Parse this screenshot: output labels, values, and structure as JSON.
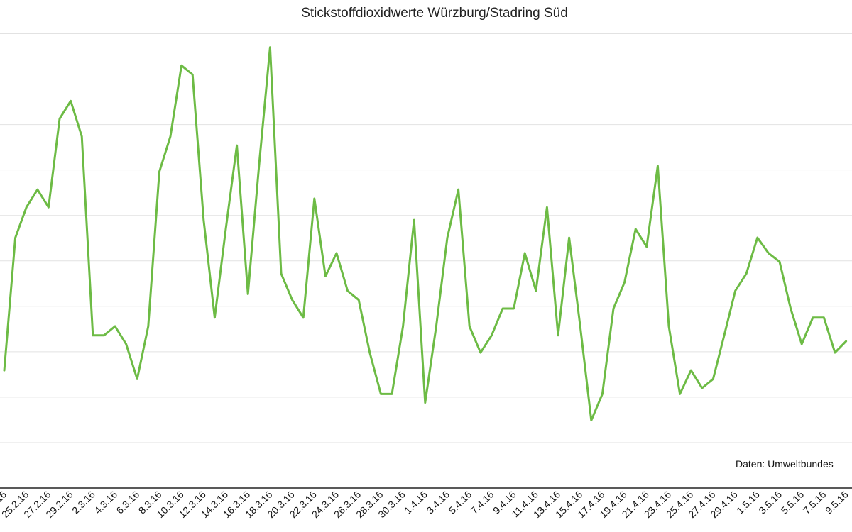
{
  "chart_data": {
    "type": "line",
    "title": "Stickstoffdioxidwerte Würzburg/Stadring Süd",
    "xlabel": "",
    "ylabel": "",
    "note": "Daten: Umweltbundes",
    "colors": {
      "series": "#6dbb45",
      "grid": "#e2e2e2",
      "axis": "#222222"
    },
    "grid": true,
    "ylim": [
      0,
      100
    ],
    "x": [
      "23.2.16",
      "24.2.16",
      "25.2.16",
      "26.2.16",
      "27.2.16",
      "28.2.16",
      "29.2.16",
      "1.3.16",
      "2.3.16",
      "3.3.16",
      "4.3.16",
      "5.3.16",
      "6.3.16",
      "7.3.16",
      "8.3.16",
      "9.3.16",
      "10.3.16",
      "11.3.16",
      "12.3.16",
      "13.3.16",
      "14.3.16",
      "15.3.16",
      "16.3.16",
      "17.3.16",
      "18.3.16",
      "19.3.16",
      "20.3.16",
      "21.3.16",
      "22.3.16",
      "23.3.16",
      "24.3.16",
      "25.3.16",
      "26.3.16",
      "27.3.16",
      "28.3.16",
      "29.3.16",
      "30.3.16",
      "31.3.16",
      "1.4.16",
      "2.4.16",
      "3.4.16",
      "4.4.16",
      "5.4.16",
      "6.4.16",
      "7.4.16",
      "8.4.16",
      "9.4.16",
      "10.4.16",
      "11.4.16",
      "12.4.16",
      "13.4.16",
      "14.4.16",
      "15.4.16",
      "16.4.16",
      "17.4.16",
      "18.4.16",
      "19.4.16",
      "20.4.16",
      "21.4.16",
      "22.4.16",
      "23.4.16",
      "24.4.16",
      "25.4.16",
      "26.4.16",
      "27.4.16",
      "28.4.16",
      "29.4.16",
      "30.4.16",
      "1.5.16",
      "2.5.16",
      "3.5.16",
      "4.5.16",
      "5.5.16",
      "6.5.16",
      "7.5.16",
      "8.5.16",
      "9.5.16"
    ],
    "tick_labels": [
      "23.2.16",
      "25.2.16",
      "27.2.16",
      "29.2.16",
      "2.3.16",
      "4.3.16",
      "6.3.16",
      "8.3.16",
      "10.3.16",
      "12.3.16",
      "14.3.16",
      "16.3.16",
      "18.3.16",
      "20.3.16",
      "22.3.16",
      "24.3.16",
      "26.3.16",
      "28.3.16",
      "30.3.16",
      "1.4.16",
      "3.4.16",
      "5.4.16",
      "7.4.16",
      "9.4.16",
      "11.4.16",
      "13.4.16",
      "15.4.16",
      "17.4.16",
      "19.4.16",
      "21.4.16",
      "23.4.16",
      "25.4.16",
      "27.4.16",
      "29.4.16",
      "1.5.16",
      "3.5.16",
      "5.5.16",
      "7.5.16",
      "9.5.16"
    ],
    "series": [
      {
        "values": [
          25.9,
          55.1,
          61.8,
          65.7,
          61.8,
          81.3,
          85.2,
          77.4,
          33.6,
          33.6,
          35.6,
          31.7,
          24.0,
          35.6,
          69.6,
          77.4,
          93.0,
          91.0,
          59.0,
          37.5,
          57.0,
          75.4,
          42.7,
          70.9,
          97.0,
          47.2,
          41.4,
          37.5,
          63.7,
          46.6,
          51.7,
          43.4,
          41.4,
          29.8,
          20.7,
          20.7,
          35.6,
          59.0,
          18.8,
          35.6,
          55.1,
          65.7,
          35.6,
          29.8,
          33.6,
          39.5,
          39.5,
          51.7,
          43.4,
          61.8,
          33.6,
          55.1,
          35.6,
          14.9,
          20.7,
          39.5,
          45.3,
          57.0,
          53.1,
          70.9,
          35.6,
          20.7,
          25.9,
          22.0,
          24.0,
          33.6,
          43.4,
          47.2,
          55.1,
          51.7,
          49.8,
          39.5,
          31.7,
          37.5,
          37.5,
          29.8,
          32.3
        ]
      }
    ]
  }
}
